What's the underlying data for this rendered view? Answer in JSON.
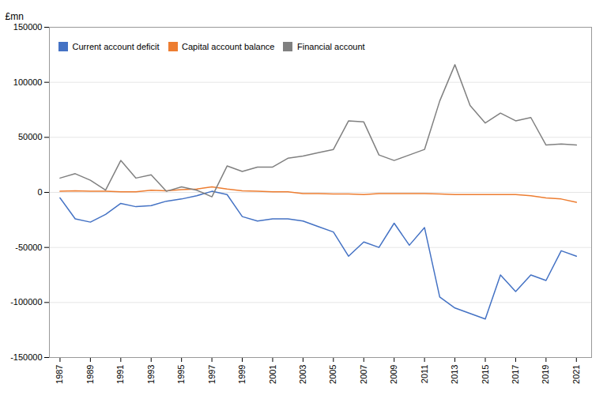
{
  "chart_data": {
    "type": "line",
    "ylabel": "£mn",
    "x": [
      1987,
      1988,
      1989,
      1990,
      1991,
      1992,
      1993,
      1994,
      1995,
      1996,
      1997,
      1998,
      1999,
      2000,
      2001,
      2002,
      2003,
      2004,
      2005,
      2006,
      2007,
      2008,
      2009,
      2010,
      2011,
      2012,
      2013,
      2014,
      2015,
      2016,
      2017,
      2018,
      2019,
      2020,
      2021
    ],
    "series": [
      {
        "name": "Current account deficit",
        "color": "#4472C4",
        "values": [
          -5000,
          -24000,
          -27000,
          -20000,
          -10000,
          -13000,
          -12000,
          -8000,
          -6000,
          -3000,
          1000,
          -2000,
          -22000,
          -26000,
          -24000,
          -24000,
          -26000,
          -31000,
          -36000,
          -58000,
          -45000,
          -50000,
          -28000,
          -48000,
          -32000,
          -95000,
          -105000,
          -110000,
          -115000,
          -75000,
          -90000,
          -75000,
          -80000,
          -53000,
          -58000
        ]
      },
      {
        "name": "Capital account balance",
        "color": "#ED7D31",
        "values": [
          1000,
          1500,
          1000,
          1000,
          500,
          500,
          2000,
          1500,
          2500,
          3000,
          5000,
          3000,
          1500,
          1000,
          500,
          500,
          -1000,
          -1000,
          -1500,
          -1500,
          -2000,
          -1000,
          -1000,
          -1000,
          -1000,
          -1500,
          -2000,
          -2000,
          -2000,
          -2000,
          -2000,
          -3000,
          -5000,
          -6000,
          -9000
        ]
      },
      {
        "name": "Financial account",
        "color": "#808080",
        "values": [
          13000,
          17000,
          11000,
          2000,
          29000,
          13000,
          16000,
          1000,
          5000,
          2000,
          -4000,
          24000,
          19000,
          23000,
          23000,
          31000,
          33000,
          36000,
          39000,
          65000,
          64000,
          34000,
          29000,
          34000,
          39000,
          83000,
          116000,
          79000,
          63000,
          72000,
          65000,
          68000,
          43000,
          44000,
          43000
        ]
      }
    ],
    "xlim": [
      1986.3,
      2022.0
    ],
    "xticks": [
      1987,
      1989,
      1991,
      1993,
      1995,
      1997,
      1999,
      2001,
      2003,
      2005,
      2007,
      2009,
      2011,
      2013,
      2015,
      2017,
      2019,
      2021
    ],
    "ylim": [
      -150000,
      150000
    ],
    "yticks": [
      -150000,
      -100000,
      -50000,
      0,
      50000,
      100000,
      150000
    ],
    "grid": "y",
    "legend": "upper left"
  }
}
